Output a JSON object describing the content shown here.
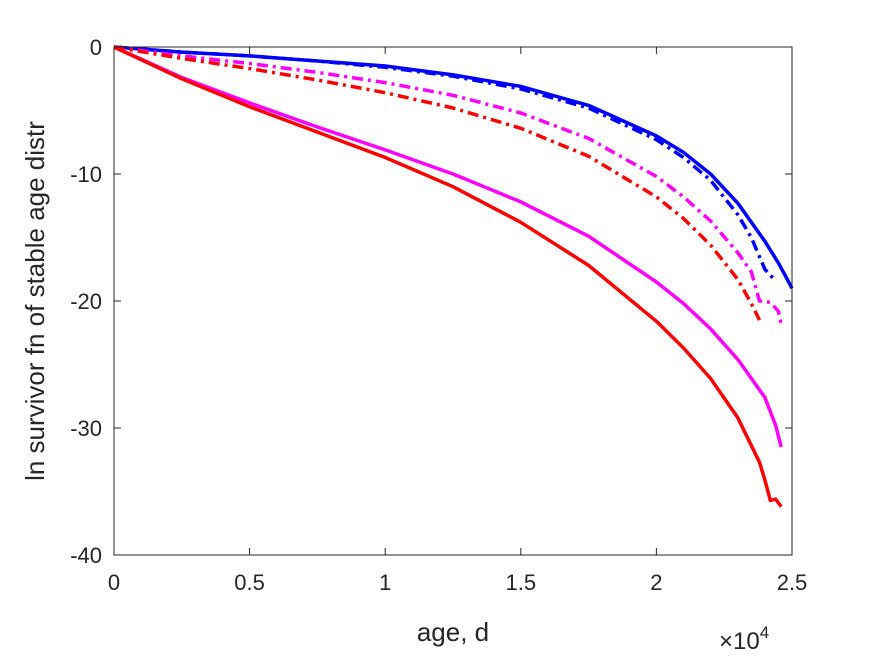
{
  "chart_data": {
    "type": "line",
    "xlabel": "age, d",
    "ylabel": "ln survivor fn of stable age distr",
    "x_multiplier": {
      "base": "×10",
      "exponent": "4"
    },
    "xlim": [
      0,
      2.5
    ],
    "ylim": [
      -40,
      0
    ],
    "x_ticks": [
      "0",
      "0.5",
      "1",
      "1.5",
      "2",
      "2.5"
    ],
    "y_ticks": [
      "0",
      "-10",
      "-20",
      "-30",
      "-40"
    ],
    "x_tick_values": [
      0,
      0.5,
      1,
      1.5,
      2,
      2.5
    ],
    "y_tick_values": [
      0,
      -10,
      -20,
      -30,
      -40
    ],
    "grid": false,
    "series": [
      {
        "color": "#0000ff",
        "style": "dashdot",
        "x": [
          0,
          0.25,
          0.5,
          0.75,
          1.0,
          1.25,
          1.5,
          1.75,
          2.0,
          2.1,
          2.2,
          2.3,
          2.35,
          2.4,
          2.43
        ],
        "y": [
          0,
          -0.4,
          -0.7,
          -1.1,
          -1.6,
          -2.3,
          -3.3,
          -4.8,
          -7.3,
          -8.7,
          -10.5,
          -13.2,
          -15.0,
          -17.5,
          -18.2
        ]
      },
      {
        "color": "#0000ff",
        "style": "solid",
        "x": [
          0,
          0.25,
          0.5,
          0.75,
          1.0,
          1.25,
          1.5,
          1.75,
          2.0,
          2.1,
          2.2,
          2.3,
          2.4,
          2.45,
          2.48,
          2.5
        ],
        "y": [
          0,
          -0.4,
          -0.7,
          -1.1,
          -1.5,
          -2.2,
          -3.1,
          -4.6,
          -7.0,
          -8.3,
          -10.0,
          -12.3,
          -15.3,
          -17.0,
          -18.2,
          -19.0
        ]
      },
      {
        "color": "#ff00ff",
        "style": "solid",
        "x": [
          0,
          0.25,
          0.5,
          0.75,
          1.0,
          1.25,
          1.5,
          1.75,
          2.0,
          2.1,
          2.2,
          2.3,
          2.4,
          2.44,
          2.46
        ],
        "y": [
          0,
          -2.4,
          -4.4,
          -6.3,
          -8.1,
          -10.0,
          -12.2,
          -14.9,
          -18.5,
          -20.2,
          -22.2,
          -24.6,
          -27.6,
          -29.8,
          -31.5
        ]
      },
      {
        "color": "#ff00ff",
        "style": "dashdot",
        "x": [
          0,
          0.25,
          0.5,
          0.75,
          1.0,
          1.25,
          1.5,
          1.75,
          2.0,
          2.1,
          2.2,
          2.3,
          2.35,
          2.38,
          2.42,
          2.45,
          2.46
        ],
        "y": [
          0,
          -0.7,
          -1.3,
          -2.0,
          -2.8,
          -3.8,
          -5.2,
          -7.2,
          -10.2,
          -11.8,
          -13.7,
          -16.2,
          -17.7,
          -20.0,
          -20.1,
          -20.8,
          -21.8
        ]
      },
      {
        "color": "#ff0000",
        "style": "dashdot",
        "x": [
          0,
          0.25,
          0.5,
          0.75,
          1.0,
          1.25,
          1.5,
          1.75,
          2.0,
          2.1,
          2.2,
          2.3,
          2.35,
          2.38
        ],
        "y": [
          0,
          -0.9,
          -1.7,
          -2.6,
          -3.6,
          -4.8,
          -6.4,
          -8.6,
          -11.8,
          -13.5,
          -15.6,
          -18.3,
          -20.2,
          -21.5
        ]
      },
      {
        "color": "#ff0000",
        "style": "solid",
        "x": [
          0,
          0.25,
          0.5,
          0.75,
          1.0,
          1.25,
          1.5,
          1.75,
          2.0,
          2.1,
          2.2,
          2.3,
          2.38,
          2.4,
          2.42,
          2.44,
          2.46
        ],
        "y": [
          0,
          -2.5,
          -4.7,
          -6.7,
          -8.7,
          -11.0,
          -13.8,
          -17.2,
          -21.6,
          -23.7,
          -26.1,
          -29.2,
          -32.7,
          -34.1,
          -35.7,
          -35.6,
          -36.2
        ]
      }
    ]
  }
}
